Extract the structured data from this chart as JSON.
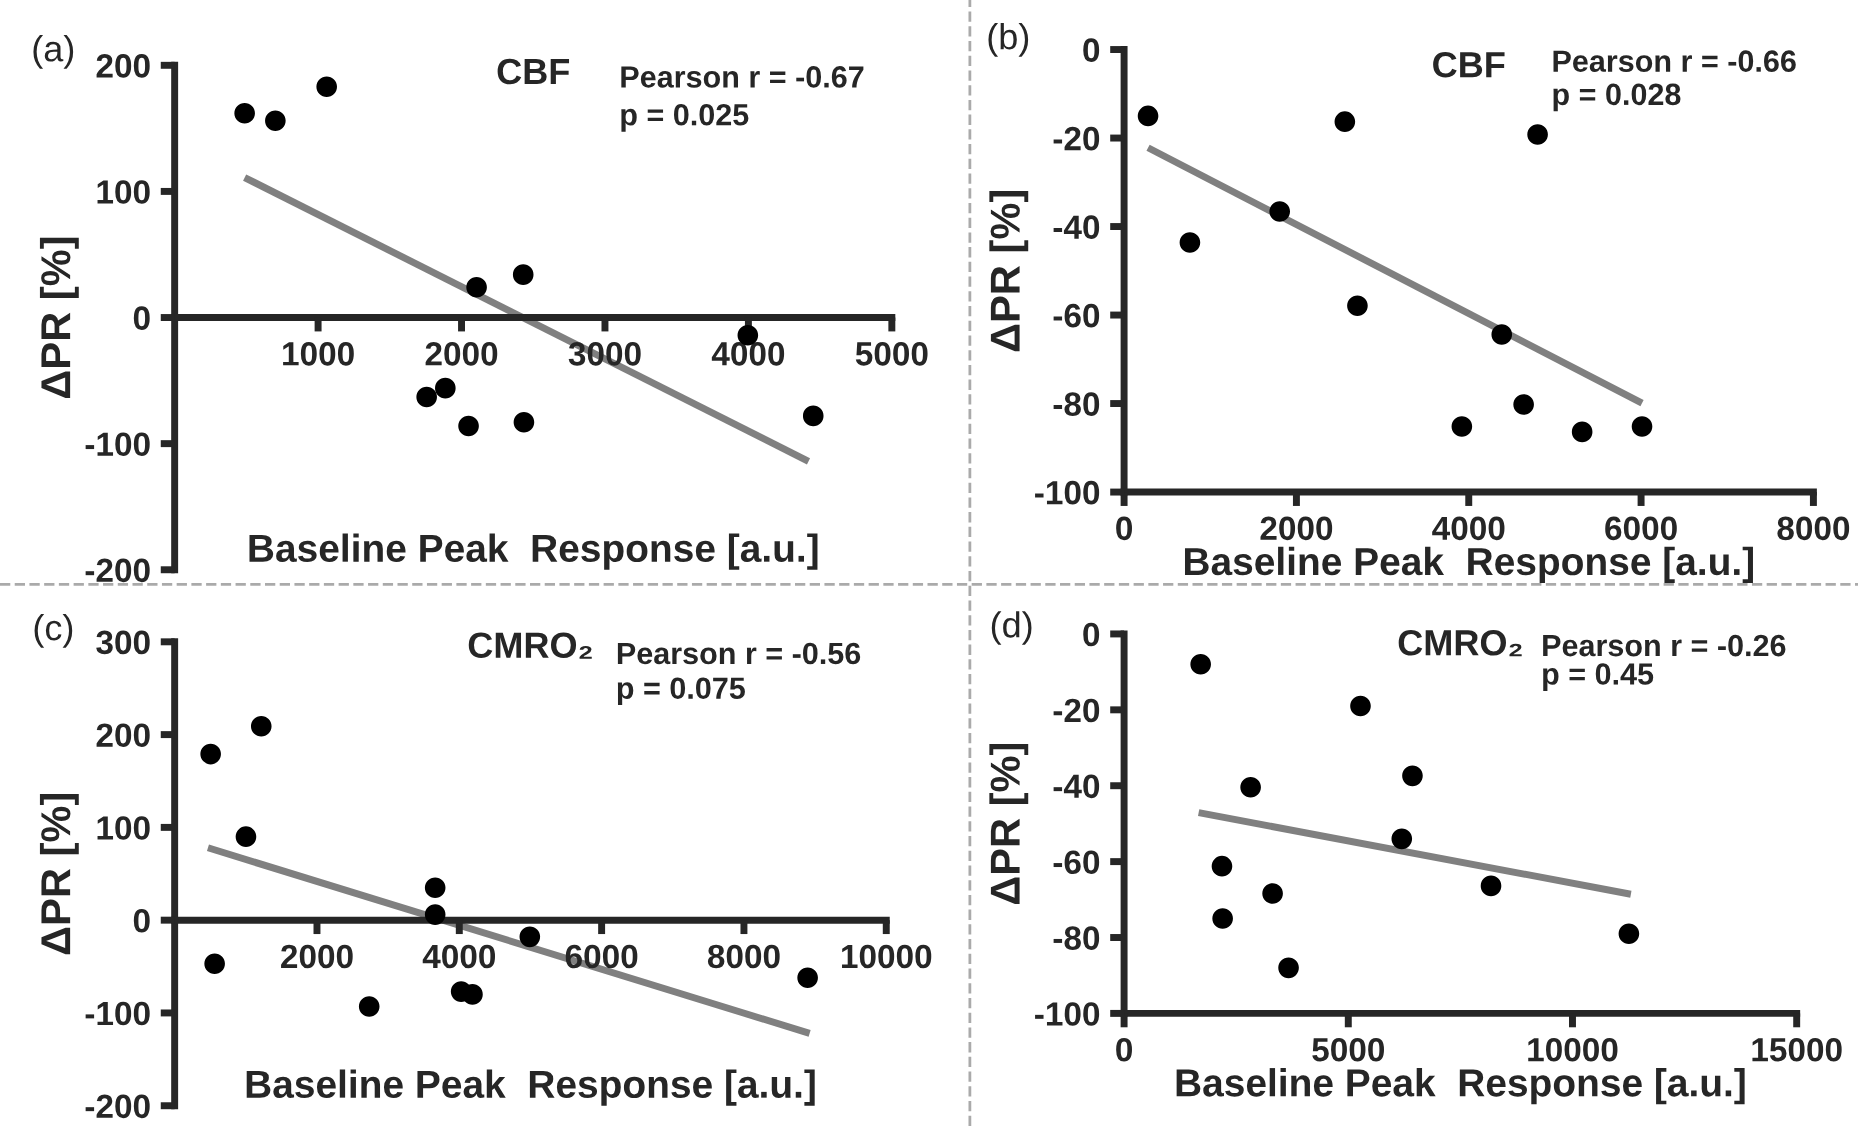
{
  "chart_data": [
    {
      "type": "scatter",
      "title": "CBF",
      "xlabel": "Baseline Peak  Response [a.u.]",
      "ylabel": "ΔPR [%]",
      "annotations": [
        "(a)",
        "Pearson r = -0.67",
        "p = 0.025"
      ],
      "xlim": [
        0,
        5000
      ],
      "xticks": [
        1000,
        2000,
        3000,
        4000,
        5000
      ],
      "ylim": [
        -200,
        200
      ],
      "yticks": [
        -200,
        -100,
        0,
        100,
        200
      ],
      "grid": false,
      "legend": false,
      "series": [
        {
          "marker": "circle",
          "color": "#000000",
          "x": [
            488,
            702,
            1060,
            2105,
            2430,
            1757,
            1887,
            2049,
            2435,
            3996,
            4452
          ],
          "values": [
            162,
            156,
            183,
            24,
            34,
            -63,
            -56,
            -86,
            -83,
            -14,
            -78
          ]
        },
        {
          "type": "line",
          "color": "#808080",
          "x": [
            488,
            4419
          ],
          "values": [
            111,
            -114
          ]
        }
      ]
    },
    {
      "type": "scatter",
      "title": "CBF",
      "xlabel": "Baseline Peak  Response [a.u.]",
      "ylabel": "ΔPR [%]",
      "annotations": [
        "(b)",
        "Pearson r = -0.66",
        "p = 0.028"
      ],
      "xlim": [
        0,
        8000
      ],
      "xticks": [
        0,
        2000,
        4000,
        6000,
        8000
      ],
      "ylim": [
        -100,
        0
      ],
      "yticks": [
        -100,
        -80,
        -60,
        -40,
        -20,
        0
      ],
      "grid": false,
      "legend": false,
      "series": [
        {
          "marker": "circle",
          "color": "#000000",
          "x": [
            278,
            764,
            1806,
            2562,
            2708,
            4799,
            4383,
            3920,
            4637,
            5316,
            6011
          ],
          "values": [
            -15,
            -43.6,
            -36.6,
            -16.3,
            -57.9,
            -19.2,
            -64.4,
            -85.2,
            -80.2,
            -86.4,
            -85.2
          ]
        },
        {
          "type": "line",
          "color": "#808080",
          "x": [
            278,
            6011
          ],
          "values": [
            -22.2,
            -79.9
          ]
        }
      ]
    },
    {
      "type": "scatter",
      "title": "CMRO₂",
      "xlabel": "Baseline Peak  Response [a.u.]",
      "ylabel": "ΔPR [%]",
      "annotations": [
        "(c)",
        "Pearson r = -0.56",
        "p = 0.075"
      ],
      "xlim": [
        0,
        10000
      ],
      "xticks": [
        2000,
        4000,
        6000,
        8000,
        10000
      ],
      "ylim": [
        -200,
        300
      ],
      "yticks": [
        -200,
        -100,
        0,
        100,
        200,
        300
      ],
      "grid": false,
      "legend": false,
      "series": [
        {
          "marker": "circle",
          "color": "#000000",
          "x": [
            506,
            562,
            1002,
            1217,
            2734,
            3661,
            3661,
            4026,
            4185,
            4991,
            8895
          ],
          "values": [
            179,
            -47,
            90,
            209,
            -93,
            35,
            6,
            -77,
            -80,
            -18,
            -62
          ]
        },
        {
          "type": "line",
          "color": "#808080",
          "x": [
            468,
            8923
          ],
          "values": [
            78,
            -122
          ]
        }
      ]
    },
    {
      "type": "scatter",
      "title": "CMRO₂",
      "xlabel": "Baseline Peak  Response [a.u.]",
      "ylabel": "ΔPR [%]",
      "annotations": [
        "(d)",
        "Pearson r = -0.26",
        "p = 0.45"
      ],
      "xlim": [
        0,
        15000
      ],
      "xticks": [
        0,
        5000,
        10000,
        15000
      ],
      "ylim": [
        -100,
        0
      ],
      "yticks": [
        -100,
        -80,
        -60,
        -40,
        -20,
        0
      ],
      "grid": false,
      "legend": false,
      "series": [
        {
          "marker": "circle",
          "color": "#000000",
          "x": [
            1708,
            2183,
            2198,
            2822,
            3312,
            3668,
            5272,
            6193,
            6431,
            8183,
            11258
          ],
          "values": [
            -8,
            -61.2,
            -75,
            -40.4,
            -68.4,
            -88,
            -19,
            -54,
            -37.4,
            -66.4,
            -79
          ]
        },
        {
          "type": "line",
          "color": "#808080",
          "x": [
            1663,
            11302
          ],
          "values": [
            -47.1,
            -68.6
          ]
        }
      ]
    }
  ]
}
